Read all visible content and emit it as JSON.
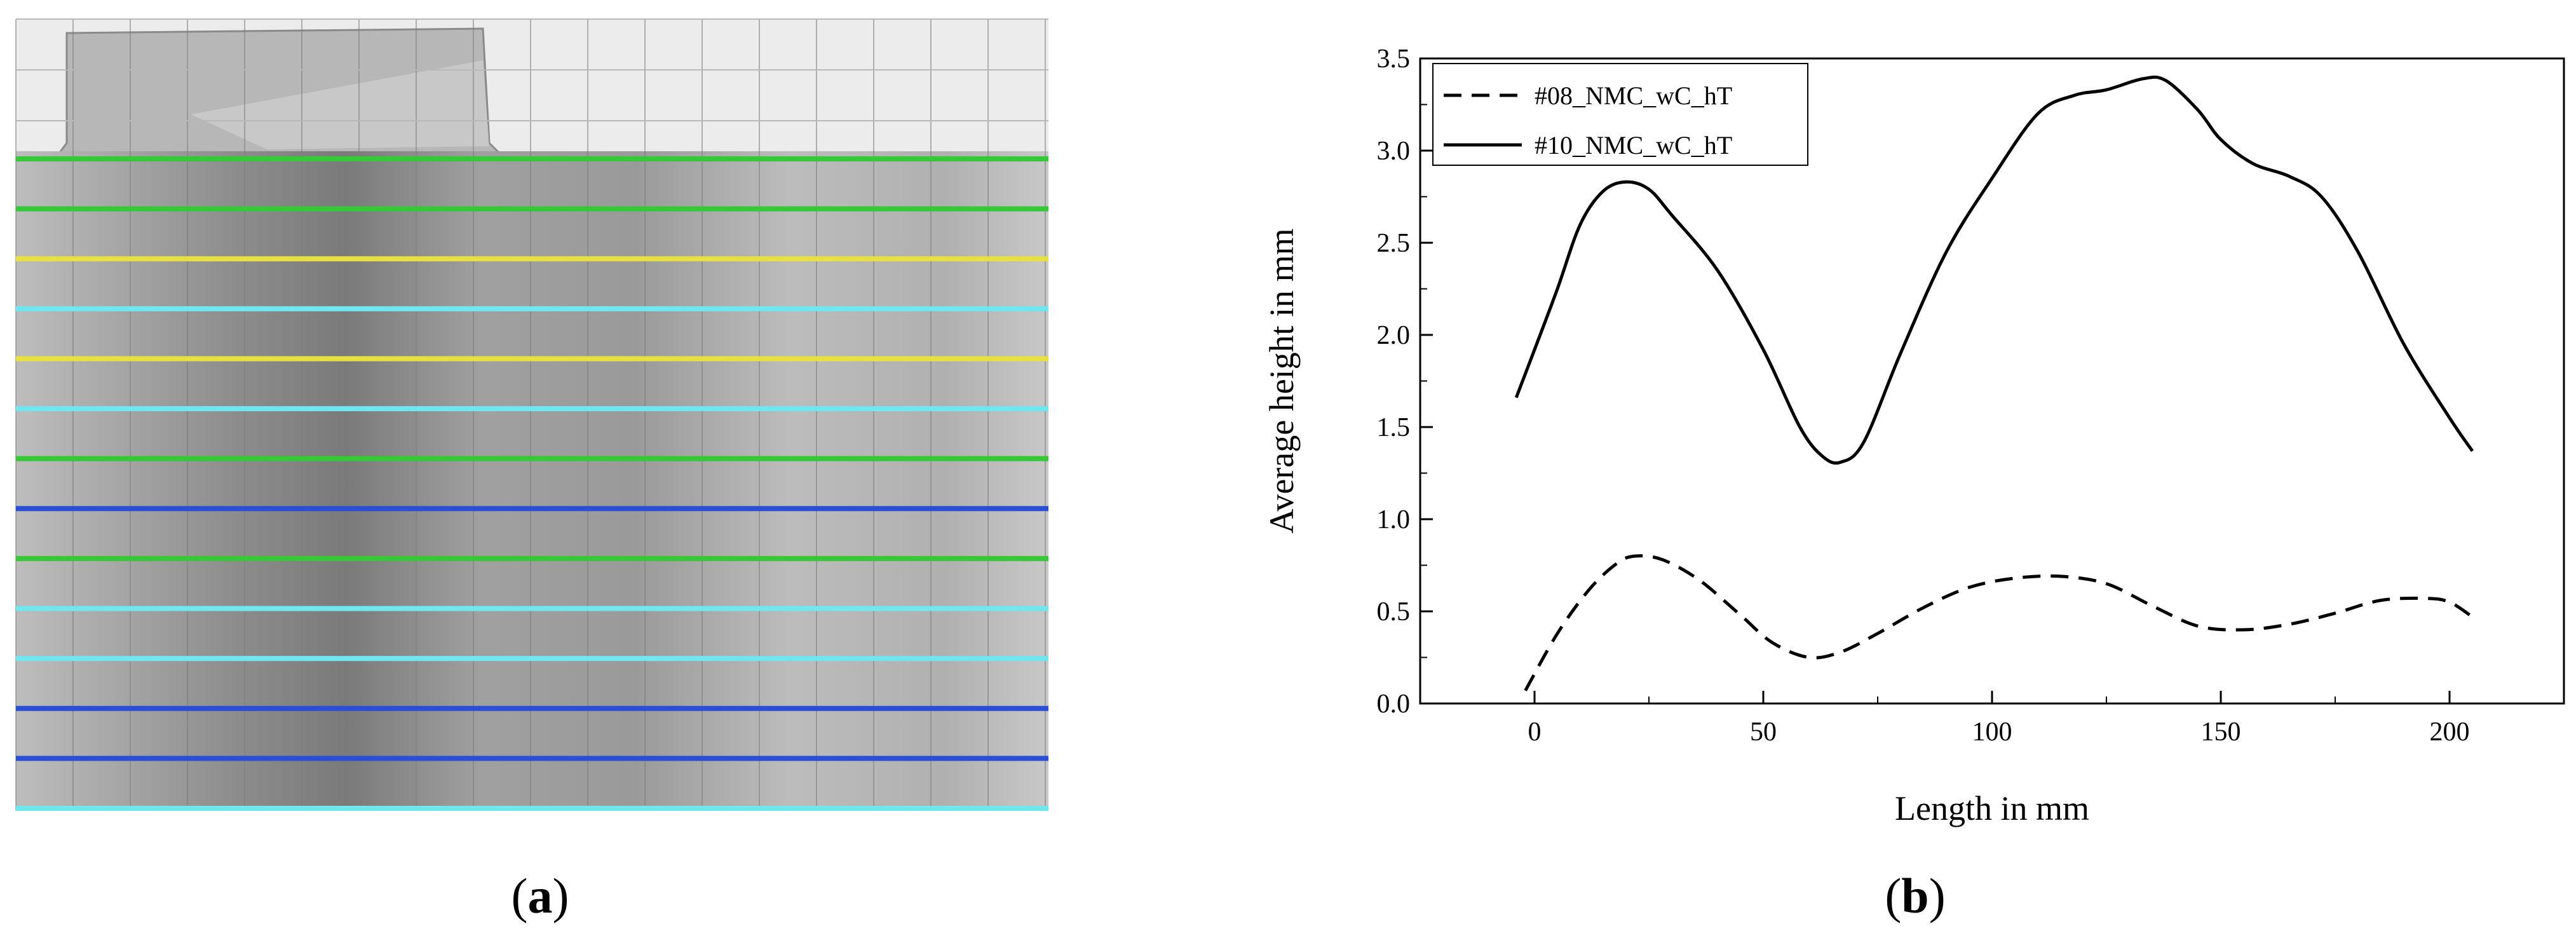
{
  "panels": {
    "a": {
      "label_open": "(",
      "label_letter": "a",
      "label_close": ")"
    },
    "b": {
      "label_open": "(",
      "label_letter": "b",
      "label_close": ")"
    }
  },
  "scan": {
    "lines": [
      "green",
      "green",
      "yellow",
      "cyan",
      "yellow",
      "cyan",
      "green",
      "blue",
      "green",
      "cyan",
      "cyan",
      "blue",
      "blue",
      "cyan"
    ]
  },
  "chart_data": {
    "type": "line",
    "title": "",
    "xlabel": "Length in mm",
    "ylabel": "Average height in mm",
    "xlim": [
      -25,
      225
    ],
    "ylim": [
      0,
      3.5
    ],
    "xticks": [
      0,
      50,
      100,
      150,
      200
    ],
    "yticks": [
      0.0,
      0.5,
      1.0,
      1.5,
      2.0,
      2.5,
      3.0,
      3.5
    ],
    "ytick_labels": [
      "0.0",
      "0.5",
      "1.0",
      "1.5",
      "2.0",
      "2.5",
      "3.0",
      "3.5"
    ],
    "grid": false,
    "legend_position": "top-left",
    "series": [
      {
        "name": "#08_NMC_wC_hT",
        "style": "dashed",
        "color": "#000000",
        "x": [
          -2,
          5,
          12,
          18,
          22,
          28,
          36,
          45,
          52,
          60,
          67,
          75,
          85,
          95,
          105,
          115,
          125,
          135,
          145,
          155,
          165,
          175,
          185,
          195,
          200,
          205
        ],
        "y": [
          0.07,
          0.38,
          0.62,
          0.76,
          0.8,
          0.78,
          0.67,
          0.48,
          0.33,
          0.25,
          0.28,
          0.38,
          0.52,
          0.63,
          0.68,
          0.69,
          0.65,
          0.53,
          0.42,
          0.4,
          0.43,
          0.49,
          0.56,
          0.57,
          0.55,
          0.47
        ]
      },
      {
        "name": "#10_NMC_wC_hT",
        "style": "solid",
        "color": "#000000",
        "x": [
          -4,
          0,
          5,
          10,
          15,
          20,
          25,
          30,
          40,
          50,
          58,
          63,
          67,
          72,
          80,
          90,
          100,
          110,
          118,
          125,
          133,
          138,
          145,
          150,
          157,
          165,
          172,
          180,
          190,
          200,
          205
        ],
        "y": [
          1.66,
          1.92,
          2.25,
          2.6,
          2.78,
          2.83,
          2.79,
          2.65,
          2.35,
          1.92,
          1.5,
          1.34,
          1.31,
          1.42,
          1.9,
          2.45,
          2.85,
          3.2,
          3.3,
          3.33,
          3.39,
          3.38,
          3.22,
          3.06,
          2.93,
          2.86,
          2.75,
          2.45,
          1.95,
          1.55,
          1.37
        ]
      }
    ]
  }
}
